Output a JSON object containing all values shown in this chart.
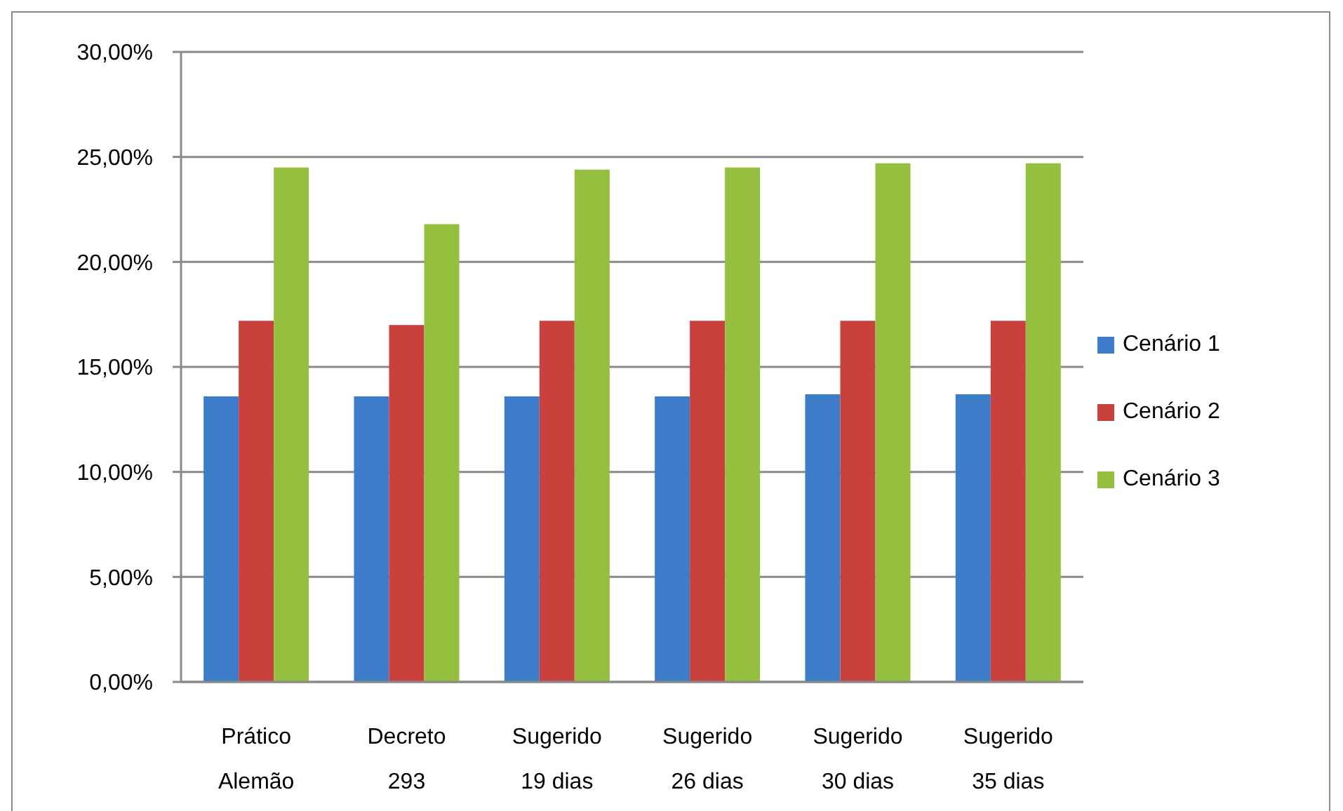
{
  "chart_data": {
    "type": "bar",
    "categories": [
      "Prático Alemão",
      "Decreto 293",
      "Sugerido 19 dias",
      "Sugerido 26 dias",
      "Sugerido 30 dias",
      "Sugerido 35 dias"
    ],
    "series": [
      {
        "name": "Cenário 1",
        "color": "#3d7cc9",
        "values": [
          13.6,
          13.6,
          13.6,
          13.6,
          13.7,
          13.7
        ]
      },
      {
        "name": "Cenário 2",
        "color": "#c9403c",
        "values": [
          17.2,
          17.0,
          17.2,
          17.2,
          17.2,
          17.2
        ]
      },
      {
        "name": "Cenário 3",
        "color": "#95bf3f",
        "values": [
          24.5,
          21.8,
          24.4,
          24.5,
          24.7,
          24.7
        ]
      }
    ],
    "ylim": [
      0,
      30
    ],
    "yticks": [
      {
        "value": 0,
        "label": "0,00%"
      },
      {
        "value": 5,
        "label": "5,00%"
      },
      {
        "value": 10,
        "label": "10,00%"
      },
      {
        "value": 15,
        "label": "15,00%"
      },
      {
        "value": 20,
        "label": "20,00%"
      },
      {
        "value": 25,
        "label": "25,00%"
      },
      {
        "value": 30,
        "label": "30,00%"
      }
    ],
    "grid": "y",
    "legend": "right"
  }
}
